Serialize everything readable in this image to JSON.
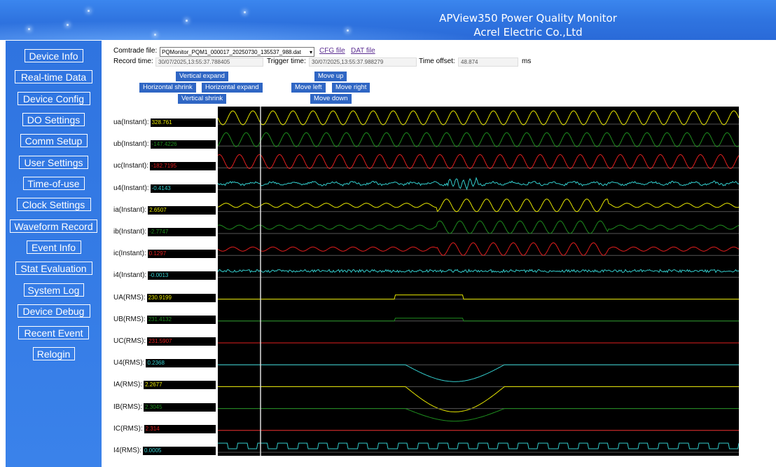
{
  "header": {
    "title": "APView350 Power Quality Monitor",
    "subtitle": "Acrel Electric Co.,Ltd"
  },
  "sidebar": {
    "items": [
      {
        "label": "Device Info"
      },
      {
        "label": "Real-time Data"
      },
      {
        "label": "Device Config"
      },
      {
        "label": "DO Settings"
      },
      {
        "label": "Comm Setup"
      },
      {
        "label": "User Settings"
      },
      {
        "label": "Time-of-use"
      },
      {
        "label": "Clock Settings"
      },
      {
        "label": "Waveform Record"
      },
      {
        "label": "Event Info"
      },
      {
        "label": "Stat Evaluation"
      },
      {
        "label": "System Log"
      },
      {
        "label": "Device Debug"
      },
      {
        "label": "Recent Event"
      },
      {
        "label": "Relogin"
      }
    ]
  },
  "file_bar": {
    "comtrade_label": "Comtrade file:",
    "comtrade_value": "PQMonitor_PQM1_000017_20250730_135537_988.dat",
    "cfg_link": "CFG file",
    "dat_link": "DAT file",
    "record_time_label": "Record time:",
    "record_time_value": "30/07/2025,13:55:37.788405",
    "trigger_time_label": "Trigger time:",
    "trigger_time_value": "30/07/2025,13:55:37.988279",
    "time_offset_label": "Time offset:",
    "time_offset_value": "48.874",
    "time_offset_unit": "ms"
  },
  "controls": {
    "vertical_expand": "Vertical expand",
    "horizontal_shrink": "Horizontal shrink",
    "horizontal_expand": "Horizontal expand",
    "vertical_shrink": "Vertical shrink",
    "move_up": "Move up",
    "move_left": "Move left",
    "move_right": "Move right",
    "move_down": "Move down"
  },
  "channels": [
    {
      "name": "ua(Instant):",
      "value": "328.761",
      "color": "#e6e600",
      "kind": "sine",
      "amp": 1.0
    },
    {
      "name": "ub(Instant):",
      "value": "-147.4226",
      "color": "#1e8c1e",
      "kind": "sine",
      "amp": 1.0
    },
    {
      "name": "uc(Instant):",
      "value": "-182.7195",
      "color": "#e01e1e",
      "kind": "sine",
      "amp": 1.0
    },
    {
      "name": "u4(Instant):",
      "value": "-0.4143",
      "color": "#33cccc",
      "kind": "noisy",
      "amp": 0.5
    },
    {
      "name": "ia(Instant):",
      "value": "2.6507",
      "color": "#e6e600",
      "kind": "current",
      "amp": 0.6
    },
    {
      "name": "ib(Instant):",
      "value": "-2.7747",
      "color": "#1e8c1e",
      "kind": "current",
      "amp": 0.6
    },
    {
      "name": "ic(Instant):",
      "value": "0.1297",
      "color": "#e01e1e",
      "kind": "current",
      "amp": 0.6
    },
    {
      "name": "i4(Instant):",
      "value": "-0.0013",
      "color": "#33cccc",
      "kind": "noise",
      "amp": 0.25
    },
    {
      "name": "UA(RMS):",
      "value": "230.9199",
      "color": "#e6e600",
      "kind": "rmsdip",
      "amp": 0.3
    },
    {
      "name": "UB(RMS):",
      "value": "231.4132",
      "color": "#1e8c1e",
      "kind": "rmsdip",
      "amp": 0.2
    },
    {
      "name": "UC(RMS):",
      "value": "231.5907",
      "color": "#e01e1e",
      "kind": "flat",
      "amp": 0.0
    },
    {
      "name": "U4(RMS):",
      "value": "0.2368",
      "color": "#33cccc",
      "kind": "rmsbump",
      "amp": 0.4
    },
    {
      "name": "IA(RMS):",
      "value": "2.2677",
      "color": "#e6e600",
      "kind": "rmsbump",
      "amp": 0.6
    },
    {
      "name": "IB(RMS):",
      "value": "2.3045",
      "color": "#1e8c1e",
      "kind": "rmsbump",
      "amp": 0.3
    },
    {
      "name": "IC(RMS):",
      "value": "2.314",
      "color": "#e01e1e",
      "kind": "flat",
      "amp": 0.0
    },
    {
      "name": "I4(RMS):",
      "value": "0.0005",
      "color": "#33cccc",
      "kind": "square",
      "amp": 0.4
    }
  ]
}
